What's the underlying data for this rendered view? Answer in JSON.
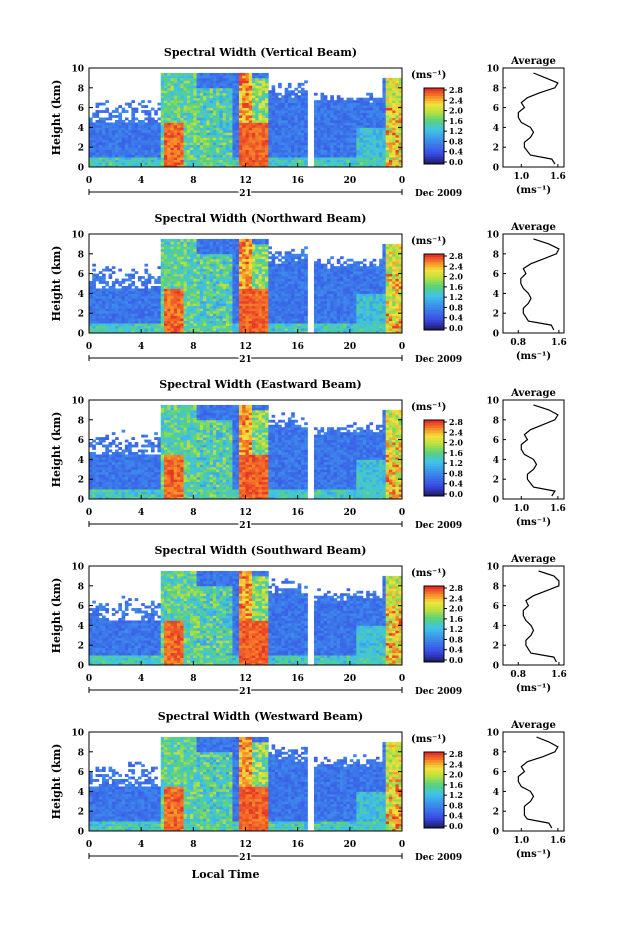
{
  "figure": {
    "x_axis_title": "Local Time",
    "y_axis_title": "Height (km)",
    "colorbar_unit": "(ms⁻¹)",
    "colorbar_ticks": [
      "0.0",
      "0.4",
      "0.8",
      "1.2",
      "1.6",
      "2.0",
      "2.4",
      "2.8"
    ],
    "date_label": "Dec 2009",
    "day_label": "21",
    "x_ticks": [
      "0",
      "4",
      "8",
      "12",
      "16",
      "20",
      "0"
    ],
    "y_ticks": [
      "0",
      "2",
      "4",
      "6",
      "8",
      "10"
    ],
    "profile_title": "Average",
    "profile_xlabel": "(ms⁻¹)",
    "colors": {
      "low": "#3a48e6",
      "mid": "#3fb6e8",
      "green": "#5fd06a",
      "yellow": "#f0e040",
      "high": "#e83a2a",
      "dark": "#1a1a60"
    }
  },
  "chart_data": [
    {
      "type": "heatmap",
      "title": "Spectral Width (Vertical Beam)",
      "xlim": [
        0,
        24
      ],
      "ylim": [
        0,
        10
      ],
      "clim": [
        0.0,
        3.0
      ],
      "profile": {
        "xticks": [
          "1.0",
          "1.6"
        ],
        "height": [
          0.3,
          0.8,
          1.2,
          1.6,
          2.0,
          2.5,
          3.0,
          3.5,
          4.0,
          4.5,
          5.0,
          5.5,
          6.0,
          6.5,
          7.0,
          7.5,
          8.0,
          8.5,
          9.0,
          9.5
        ],
        "values": [
          1.55,
          1.5,
          1.15,
          1.1,
          1.05,
          1.05,
          1.15,
          1.2,
          1.15,
          1.0,
          0.95,
          0.95,
          1.05,
          1.0,
          1.1,
          1.3,
          1.55,
          1.6,
          1.4,
          1.2
        ]
      }
    },
    {
      "type": "heatmap",
      "title": "Spectral Width (Northward Beam)",
      "xlim": [
        0,
        24
      ],
      "ylim": [
        0,
        10
      ],
      "clim": [
        0.0,
        3.0
      ],
      "profile": {
        "xticks": [
          "0.8",
          "1.6"
        ],
        "height": [
          0.3,
          0.8,
          1.2,
          1.6,
          2.0,
          2.5,
          3.0,
          3.5,
          4.0,
          4.5,
          5.0,
          5.5,
          6.0,
          6.5,
          7.0,
          7.5,
          8.0,
          8.5,
          9.0,
          9.5
        ],
        "values": [
          1.5,
          1.45,
          1.0,
          0.95,
          0.9,
          0.9,
          1.0,
          1.05,
          1.0,
          0.9,
          0.85,
          0.85,
          0.95,
          0.9,
          1.05,
          1.3,
          1.55,
          1.6,
          1.4,
          1.1
        ]
      }
    },
    {
      "type": "heatmap",
      "title": "Spectral Width (Eastward Beam)",
      "xlim": [
        0,
        24
      ],
      "ylim": [
        0,
        10
      ],
      "clim": [
        0.0,
        3.0
      ],
      "profile": {
        "xticks": [
          "1.0",
          "1.6"
        ],
        "height": [
          0.3,
          0.8,
          1.2,
          1.6,
          2.0,
          2.5,
          3.0,
          3.5,
          4.0,
          4.5,
          5.0,
          5.5,
          6.0,
          6.5,
          7.0,
          7.5,
          8.0,
          8.5,
          9.0,
          9.5
        ],
        "values": [
          1.5,
          1.55,
          1.2,
          1.15,
          1.1,
          1.1,
          1.2,
          1.25,
          1.2,
          1.05,
          1.0,
          1.0,
          1.1,
          1.05,
          1.15,
          1.35,
          1.55,
          1.6,
          1.45,
          1.2
        ]
      }
    },
    {
      "type": "heatmap",
      "title": "Spectral Width (Southward Beam)",
      "xlim": [
        0,
        24
      ],
      "ylim": [
        0,
        10
      ],
      "clim": [
        0.0,
        3.0
      ],
      "profile": {
        "xticks": [
          "0.8",
          "1.6"
        ],
        "height": [
          0.3,
          0.8,
          1.2,
          1.6,
          2.0,
          2.5,
          3.0,
          3.5,
          4.0,
          4.5,
          5.0,
          5.5,
          6.0,
          6.5,
          7.0,
          7.5,
          8.0,
          8.5,
          9.0,
          9.5
        ],
        "values": [
          1.55,
          1.5,
          1.05,
          1.0,
          0.95,
          0.95,
          1.05,
          1.1,
          1.05,
          0.95,
          0.9,
          0.9,
          1.0,
          0.95,
          1.1,
          1.35,
          1.6,
          1.6,
          1.5,
          1.2
        ]
      }
    },
    {
      "type": "heatmap",
      "title": "Spectral Width (Westward Beam)",
      "xlim": [
        0,
        24
      ],
      "ylim": [
        0,
        10
      ],
      "clim": [
        0.0,
        3.0
      ],
      "profile": {
        "xticks": [
          "1.0",
          "1.6"
        ],
        "height": [
          0.3,
          0.8,
          1.2,
          1.6,
          2.0,
          2.5,
          3.0,
          3.5,
          4.0,
          4.5,
          5.0,
          5.5,
          6.0,
          6.5,
          7.0,
          7.5,
          8.0,
          8.5,
          9.0,
          9.5
        ],
        "values": [
          1.5,
          1.45,
          1.1,
          1.05,
          1.05,
          1.05,
          1.15,
          1.2,
          1.15,
          1.0,
          0.95,
          0.95,
          1.05,
          1.0,
          1.1,
          1.35,
          1.55,
          1.6,
          1.45,
          1.25
        ]
      }
    }
  ]
}
